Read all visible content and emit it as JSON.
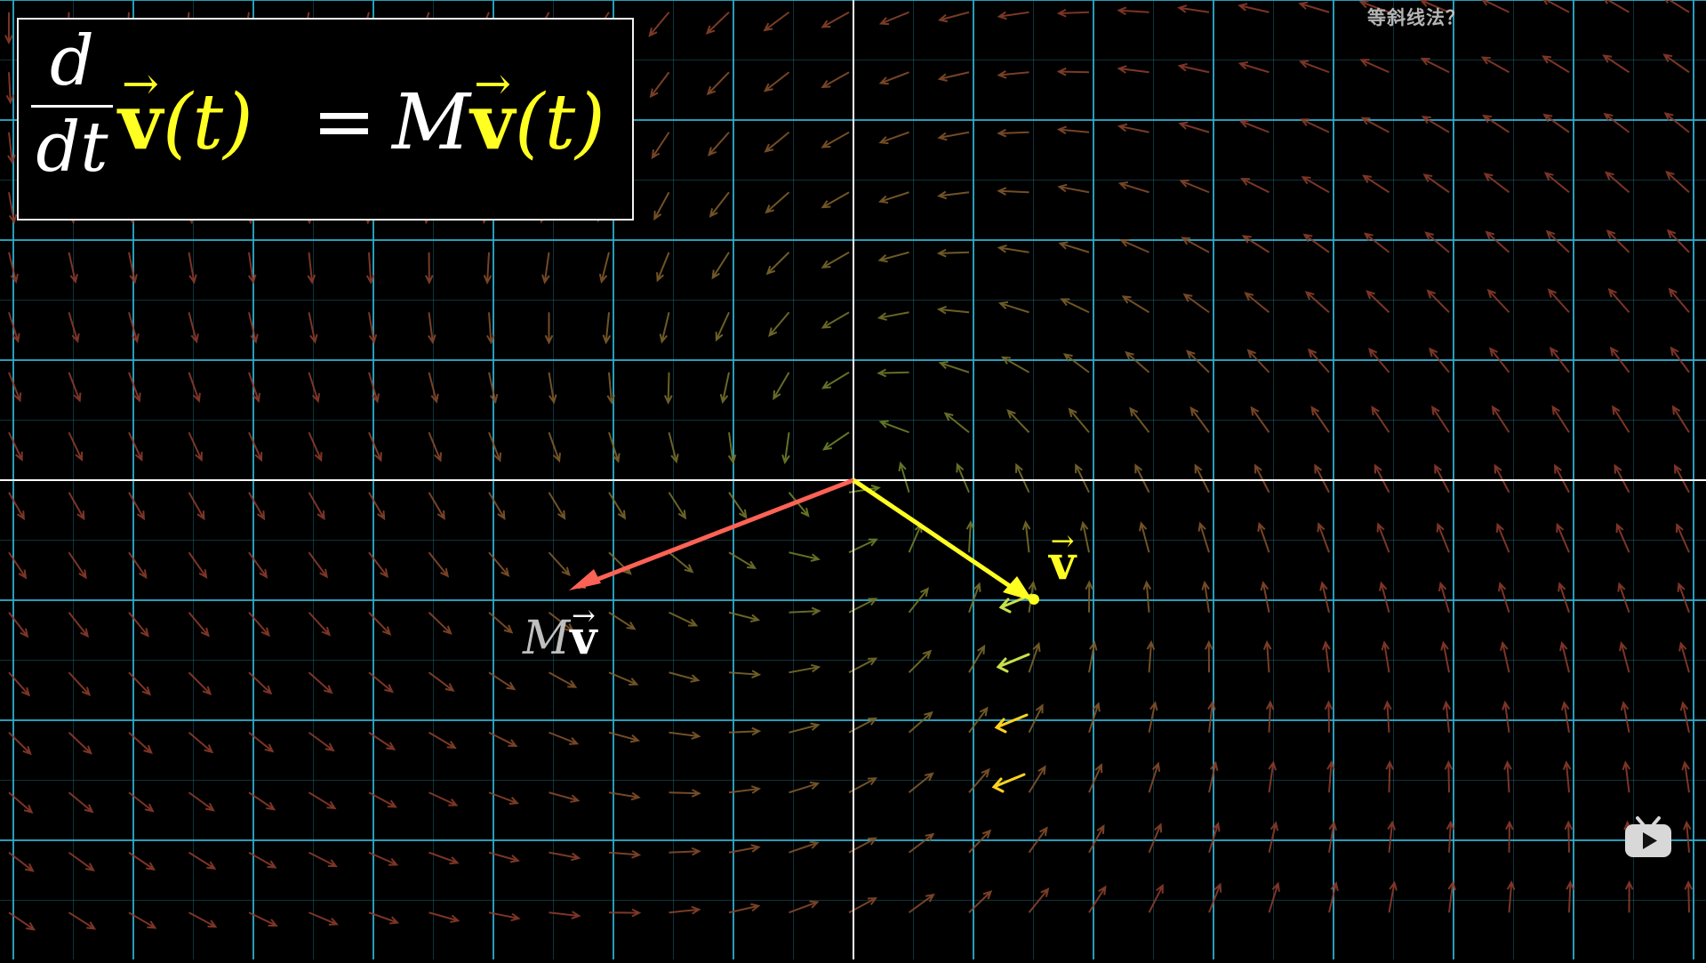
{
  "subtitle": "等斜线法？",
  "formula": {
    "frac_num": "d",
    "frac_den": "dt",
    "lhs_vec": "v",
    "lhs_arg": "(t)",
    "equals": "=",
    "matrix": "M",
    "rhs_vec": "v",
    "rhs_arg": "(t)",
    "arrow_glyph": "→"
  },
  "labels": {
    "v": "v",
    "mv_matrix": "M",
    "mv_vec": "v"
  },
  "colors": {
    "background": "#000000",
    "grid": "#2fb4d6",
    "axes": "#ffffff",
    "vector_v": "#ffff22",
    "vector_mv": "#fc6255",
    "field_green": "#6a8a2a",
    "field_red": "#8a3a2a"
  },
  "icons": {
    "watermark": "bilibili-tv-icon"
  }
}
